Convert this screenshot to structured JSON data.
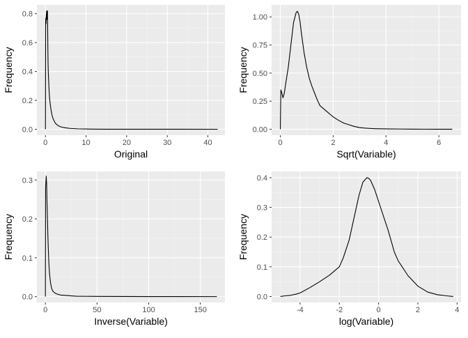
{
  "chart_data": [
    {
      "type": "line",
      "title": "",
      "xlabel": "Original",
      "ylabel": "Frequency",
      "xlim": [
        -2.1,
        44.2
      ],
      "ylim": [
        -0.041,
        0.861
      ],
      "xticks": [
        0,
        10,
        20,
        30,
        40
      ],
      "yticks": [
        0.0,
        0.2,
        0.4,
        0.6,
        0.8
      ],
      "ytick_labels": [
        "0.0",
        "0.2",
        "0.4",
        "0.6",
        "0.8"
      ],
      "grid": true,
      "series": [
        {
          "x": [
            0,
            0.05,
            0.1,
            0.15,
            0.2,
            0.25,
            0.3,
            0.35,
            0.4,
            0.45,
            0.5,
            0.55,
            0.6,
            0.65,
            0.7,
            0.8,
            0.9,
            1.0,
            1.2,
            1.4,
            1.6,
            1.8,
            2.0,
            2.5,
            3.0,
            3.5,
            4.0,
            5.0,
            6.0,
            8.0,
            10.0,
            12.0,
            15.0,
            20.0,
            30.0,
            42.4
          ],
          "y": [
            0,
            0.75,
            0.77,
            0.73,
            0.78,
            0.8,
            0.82,
            0.76,
            0.81,
            0.8,
            0.82,
            0.7,
            0.55,
            0.45,
            0.4,
            0.33,
            0.27,
            0.22,
            0.17,
            0.13,
            0.1,
            0.08,
            0.065,
            0.04,
            0.028,
            0.02,
            0.015,
            0.01,
            0.006,
            0.003,
            0.002,
            0.001,
            0.0005,
            0.0003,
            0.0001,
            0
          ]
        }
      ]
    },
    {
      "type": "line",
      "title": "",
      "xlabel": "Sqrt(Variable)",
      "ylabel": "Frequency",
      "xlim": [
        -0.33,
        6.84
      ],
      "ylim": [
        -0.053,
        1.107
      ],
      "xticks": [
        0,
        2,
        4,
        6
      ],
      "yticks": [
        0.0,
        0.25,
        0.5,
        0.75,
        1.0
      ],
      "ytick_labels": [
        "0.00",
        "0.25",
        "0.50",
        "0.75",
        "1.00"
      ],
      "grid": true,
      "series": [
        {
          "x": [
            0,
            0.02,
            0.05,
            0.1,
            0.15,
            0.2,
            0.3,
            0.4,
            0.5,
            0.6,
            0.65,
            0.7,
            0.75,
            0.8,
            0.9,
            1.0,
            1.1,
            1.2,
            1.3,
            1.4,
            1.5,
            1.6,
            1.7,
            1.8,
            1.9,
            2.0,
            2.2,
            2.4,
            2.6,
            2.8,
            3.0,
            3.2,
            3.4,
            3.6,
            3.8,
            4.0,
            4.5,
            5.0,
            5.5,
            6.0,
            6.51
          ],
          "y": [
            0,
            0.35,
            0.33,
            0.28,
            0.32,
            0.4,
            0.55,
            0.75,
            0.95,
            1.04,
            1.05,
            1.02,
            0.95,
            0.85,
            0.68,
            0.55,
            0.45,
            0.38,
            0.32,
            0.26,
            0.21,
            0.19,
            0.17,
            0.15,
            0.13,
            0.11,
            0.08,
            0.055,
            0.04,
            0.025,
            0.015,
            0.01,
            0.007,
            0.005,
            0.004,
            0.003,
            0.002,
            0.001,
            0.0005,
            0.0002,
            0
          ]
        }
      ]
    },
    {
      "type": "line",
      "title": "",
      "xlabel": "Inverse(Variable)",
      "ylabel": "Frequency",
      "xlim": [
        -8.2,
        173.8
      ],
      "ylim": [
        -0.015,
        0.322
      ],
      "xticks": [
        0,
        50,
        100,
        150
      ],
      "yticks": [
        0.0,
        0.1,
        0.2,
        0.3
      ],
      "ytick_labels": [
        "0.0",
        "0.1",
        "0.2",
        "0.3"
      ],
      "grid": true,
      "series": [
        {
          "x": [
            0,
            0.2,
            0.4,
            0.6,
            0.8,
            1.0,
            1.2,
            1.5,
            2.0,
            2.5,
            3.0,
            3.5,
            4.0,
            5.0,
            6.0,
            7.0,
            8.0,
            10.0,
            12.0,
            15.0,
            20.0,
            25.0,
            30.0,
            50.0,
            100.0,
            166.0
          ],
          "y": [
            0,
            0.28,
            0.29,
            0.3,
            0.31,
            0.3,
            0.29,
            0.25,
            0.2,
            0.15,
            0.11,
            0.08,
            0.06,
            0.035,
            0.022,
            0.015,
            0.012,
            0.008,
            0.006,
            0.004,
            0.003,
            0.002,
            0.001,
            0.0005,
            0.0001,
            0
          ]
        }
      ]
    },
    {
      "type": "line",
      "title": "",
      "xlabel": "log(Variable)",
      "ylabel": "Frequency",
      "xlim": [
        -5.45,
        4.2
      ],
      "ylim": [
        -0.02,
        0.421
      ],
      "xticks": [
        -4,
        -2,
        0,
        2,
        4
      ],
      "yticks": [
        0.0,
        0.1,
        0.2,
        0.3,
        0.4
      ],
      "ytick_labels": [
        "0.0",
        "0.1",
        "0.2",
        "0.3",
        "0.4"
      ],
      "grid": true,
      "series": [
        {
          "x": [
            -5.0,
            -4.8,
            -4.5,
            -4.2,
            -4.0,
            -3.5,
            -3.0,
            -2.5,
            -2.0,
            -1.8,
            -1.5,
            -1.2,
            -1.0,
            -0.8,
            -0.6,
            -0.5,
            -0.4,
            -0.2,
            0.0,
            0.2,
            0.5,
            0.8,
            1.0,
            1.5,
            2.0,
            2.5,
            3.0,
            3.5,
            3.8
          ],
          "y": [
            0,
            0.002,
            0.004,
            0.008,
            0.012,
            0.03,
            0.05,
            0.072,
            0.1,
            0.13,
            0.19,
            0.28,
            0.34,
            0.385,
            0.4,
            0.398,
            0.39,
            0.36,
            0.32,
            0.28,
            0.22,
            0.15,
            0.12,
            0.07,
            0.035,
            0.015,
            0.006,
            0.002,
            0
          ]
        }
      ]
    }
  ],
  "colors": {
    "panel_background": "#EBEBEB",
    "grid_major": "#FFFFFF",
    "grid_minor": "#F5F5F5",
    "line": "#000000",
    "tick_text": "#4D4D4D",
    "axis_title": "#000000"
  }
}
